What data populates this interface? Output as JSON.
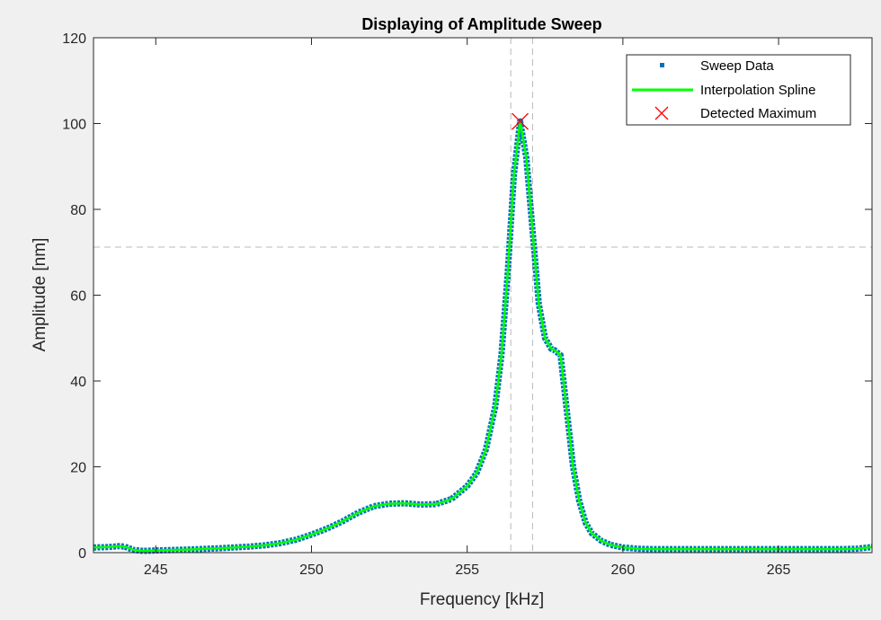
{
  "chart_data": {
    "type": "line",
    "title": "Displaying of Amplitude Sweep",
    "xlabel": "Frequency [kHz]",
    "ylabel": "Amplitude [nm]",
    "xlim": [
      243,
      268
    ],
    "ylim": [
      0,
      120
    ],
    "xticks": [
      245,
      250,
      255,
      260,
      265
    ],
    "yticks": [
      0,
      20,
      40,
      60,
      80,
      100,
      120
    ],
    "grid": false,
    "legend_position": "top-right",
    "reference_lines": {
      "vertical_x": [
        256.4,
        257.1
      ],
      "horizontal_y": [
        71.2
      ]
    },
    "series": [
      {
        "name": "Sweep Data",
        "style": "square-markers",
        "color": "#0072bd",
        "x": [
          243,
          243.5,
          243.8,
          244.0,
          244.3,
          244.6,
          245,
          246,
          247,
          248,
          248.5,
          249,
          249.5,
          250,
          250.5,
          251,
          251.5,
          252,
          252.5,
          253,
          253.5,
          254,
          254.5,
          255,
          255.3,
          255.6,
          255.9,
          256.1,
          256.3,
          256.5,
          256.7,
          256.9,
          257.1,
          257.3,
          257.5,
          257.7,
          257.8,
          258.0,
          258.2,
          258.4,
          258.6,
          258.8,
          259.0,
          259.3,
          259.6,
          260,
          260.5,
          261,
          262,
          263,
          264,
          265,
          266,
          267,
          267.5,
          268
        ],
        "y": [
          1.2,
          1.3,
          1.5,
          1.4,
          0.6,
          0.4,
          0.5,
          0.7,
          1.0,
          1.4,
          1.7,
          2.2,
          3.0,
          4.2,
          5.6,
          7.3,
          9.3,
          10.8,
          11.4,
          11.5,
          11.2,
          11.3,
          12.5,
          15.5,
          18.5,
          24,
          34,
          46,
          65,
          88,
          100.5,
          92,
          75,
          58,
          50,
          47.5,
          47.2,
          46,
          33,
          20,
          12,
          7,
          4.5,
          2.8,
          1.8,
          1.2,
          0.9,
          0.8,
          0.8,
          0.8,
          0.8,
          0.8,
          0.8,
          0.8,
          0.9,
          1.3
        ]
      },
      {
        "name": "Interpolation Spline",
        "style": "line",
        "color": "#00ff00"
      },
      {
        "name": "Detected Maximum",
        "style": "x-marker",
        "color": "#ff0000",
        "x": [
          256.7
        ],
        "y": [
          100.5
        ]
      }
    ]
  }
}
